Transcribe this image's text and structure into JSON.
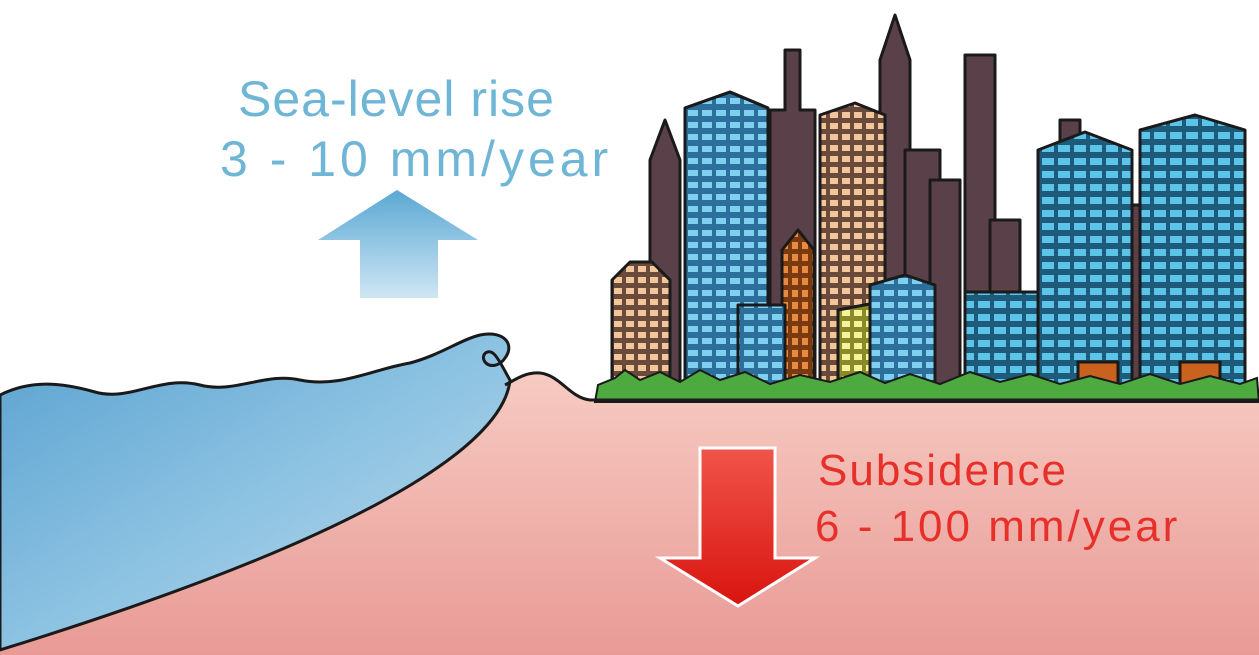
{
  "sea_level": {
    "title": "Sea-level rise",
    "rate": "3 - 10 mm/year",
    "color": "#6fb6d6",
    "arrow_direction": "up"
  },
  "subsidence": {
    "title": "Subsidence",
    "rate": "6 - 100 mm/year",
    "color": "#e8302a",
    "arrow_direction": "down"
  },
  "palette": {
    "water": "#7cb8dc",
    "ground": "#f0b5ad",
    "grass": "#4caa3e",
    "building_dark": "#5a4149",
    "building_blue": "#3b9fe0",
    "building_tan": "#e8a57a",
    "building_orange": "#c8621e",
    "building_yellow": "#e8e86a"
  }
}
